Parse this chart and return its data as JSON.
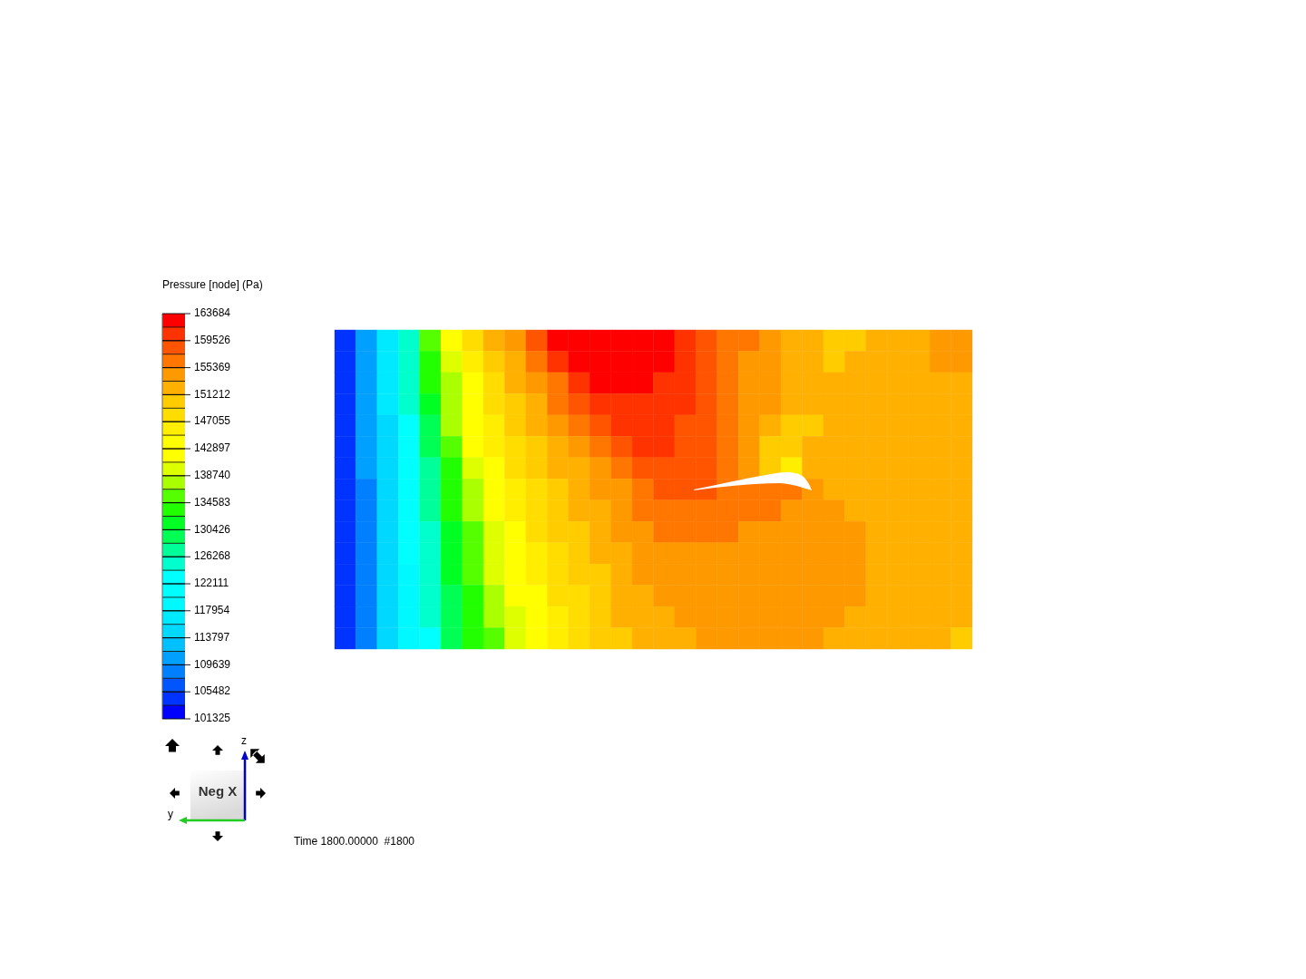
{
  "chart_data": {
    "type": "heatmap",
    "clabel": "Pressure [node] (Pa)",
    "categories": [
      null,
      null,
      null,
      null,
      null,
      null,
      null,
      null,
      null,
      null,
      null,
      null,
      null,
      null,
      null,
      null,
      null,
      null,
      null,
      null,
      null,
      null,
      null,
      null,
      null,
      null,
      null,
      null,
      null,
      null
    ],
    "y_categories": [
      null,
      null,
      null,
      null,
      null,
      null,
      null,
      null,
      null,
      null,
      null,
      null,
      null,
      null,
      null
    ],
    "cells": [
      [
        104400,
        110700,
        116900,
        125200,
        135600,
        141900,
        148100,
        152300,
        154300,
        158500,
        162600,
        162600,
        162600,
        162600,
        162600,
        162600,
        160600,
        158500,
        156400,
        156400,
        154300,
        152300,
        152300,
        150200,
        150200,
        152300,
        152300,
        152300,
        154300,
        154300
      ],
      [
        104400,
        110700,
        116900,
        125200,
        133500,
        139800,
        146000,
        150200,
        152300,
        156400,
        160600,
        162600,
        162600,
        162600,
        162600,
        162600,
        160600,
        158500,
        156400,
        154300,
        154300,
        152300,
        152300,
        150200,
        152300,
        152300,
        152300,
        152300,
        154300,
        154300
      ],
      [
        104400,
        110700,
        116900,
        125200,
        133500,
        137700,
        143900,
        148100,
        152300,
        154300,
        156400,
        160600,
        162600,
        162600,
        162600,
        160600,
        160600,
        158500,
        156400,
        154300,
        154300,
        152300,
        152300,
        152300,
        152300,
        152300,
        152300,
        152300,
        152300,
        152300
      ],
      [
        104400,
        110700,
        116900,
        125200,
        131500,
        137700,
        143900,
        148100,
        150200,
        152300,
        156400,
        158500,
        160600,
        160600,
        160600,
        160600,
        160600,
        158500,
        156400,
        154300,
        154300,
        152300,
        152300,
        152300,
        152300,
        152300,
        152300,
        152300,
        152300,
        152300
      ],
      [
        104400,
        110700,
        114800,
        123200,
        129400,
        137700,
        141900,
        146000,
        150200,
        152300,
        154300,
        156400,
        158500,
        160600,
        160600,
        160600,
        158500,
        158500,
        156400,
        154300,
        152300,
        150200,
        150200,
        152300,
        152300,
        152300,
        152300,
        152300,
        152300,
        152300
      ],
      [
        104400,
        110700,
        114800,
        123200,
        129400,
        135600,
        141900,
        146000,
        148100,
        150200,
        152300,
        154300,
        156400,
        158500,
        160600,
        160600,
        158500,
        158500,
        156400,
        154300,
        150200,
        150200,
        152300,
        152300,
        152300,
        152300,
        152300,
        152300,
        152300,
        152300
      ],
      [
        104400,
        110700,
        114800,
        121100,
        127300,
        133500,
        139800,
        143900,
        148100,
        150200,
        152300,
        152300,
        154300,
        156400,
        158500,
        158500,
        158500,
        158500,
        156400,
        154300,
        150200,
        146000,
        152300,
        152300,
        152300,
        152300,
        152300,
        152300,
        152300,
        152300
      ],
      [
        104400,
        108600,
        114800,
        121100,
        127300,
        133500,
        137700,
        141900,
        146000,
        148100,
        150200,
        152300,
        154300,
        154300,
        156400,
        158500,
        158500,
        158500,
        156400,
        156400,
        156400,
        156400,
        154300,
        152300,
        152300,
        152300,
        152300,
        152300,
        152300,
        152300
      ],
      [
        104400,
        108600,
        114800,
        121100,
        127300,
        133500,
        137700,
        141900,
        146000,
        148100,
        150200,
        152300,
        152300,
        154300,
        156400,
        156400,
        156400,
        156400,
        156400,
        156400,
        156400,
        154300,
        154300,
        154300,
        152300,
        152300,
        152300,
        152300,
        152300,
        152300
      ],
      [
        104400,
        108600,
        114800,
        121100,
        125200,
        131500,
        135600,
        139800,
        143900,
        148100,
        150200,
        150200,
        152300,
        154300,
        154300,
        156400,
        156400,
        156400,
        156400,
        154300,
        154300,
        154300,
        154300,
        154300,
        154300,
        152300,
        152300,
        152300,
        152300,
        152300
      ],
      [
        104400,
        108600,
        114800,
        121100,
        125200,
        131500,
        135600,
        139800,
        143900,
        146000,
        148100,
        150200,
        152300,
        152300,
        154300,
        154300,
        154300,
        154300,
        154300,
        154300,
        154300,
        154300,
        154300,
        154300,
        154300,
        152300,
        152300,
        152300,
        152300,
        152300
      ],
      [
        104400,
        108600,
        114800,
        119000,
        125200,
        131500,
        135600,
        139800,
        141900,
        146000,
        148100,
        150200,
        150200,
        152300,
        154300,
        154300,
        154300,
        154300,
        154300,
        154300,
        154300,
        154300,
        154300,
        154300,
        154300,
        152300,
        152300,
        152300,
        152300,
        152300
      ],
      [
        104400,
        108600,
        114800,
        119000,
        125200,
        129400,
        133500,
        137700,
        141900,
        143900,
        148100,
        148100,
        150200,
        152300,
        152300,
        154300,
        154300,
        154300,
        154300,
        154300,
        154300,
        154300,
        154300,
        154300,
        154300,
        152300,
        152300,
        152300,
        152300,
        152300
      ],
      [
        104400,
        108600,
        114800,
        119000,
        125200,
        129400,
        133500,
        137700,
        139800,
        143900,
        146000,
        148100,
        150200,
        152300,
        152300,
        152300,
        154300,
        154300,
        154300,
        154300,
        154300,
        154300,
        154300,
        154300,
        152300,
        152300,
        152300,
        152300,
        152300,
        152300
      ],
      [
        104400,
        108600,
        114800,
        119000,
        123200,
        129400,
        133500,
        135600,
        139800,
        141900,
        146000,
        148100,
        150200,
        150200,
        152300,
        152300,
        152300,
        154300,
        154300,
        154300,
        154300,
        154300,
        154300,
        152300,
        152300,
        152300,
        152300,
        152300,
        152300,
        150200
      ]
    ],
    "clim": [
      101325,
      163684
    ],
    "cticks": [
      101325,
      105482,
      109639,
      113797,
      117954,
      122111,
      126268,
      130426,
      134583,
      138740,
      142897,
      147055,
      151212,
      155369,
      159526,
      163684
    ],
    "annotations": [
      "Time 1800.00000  #1800",
      "Neg X",
      "z",
      "y"
    ]
  }
}
